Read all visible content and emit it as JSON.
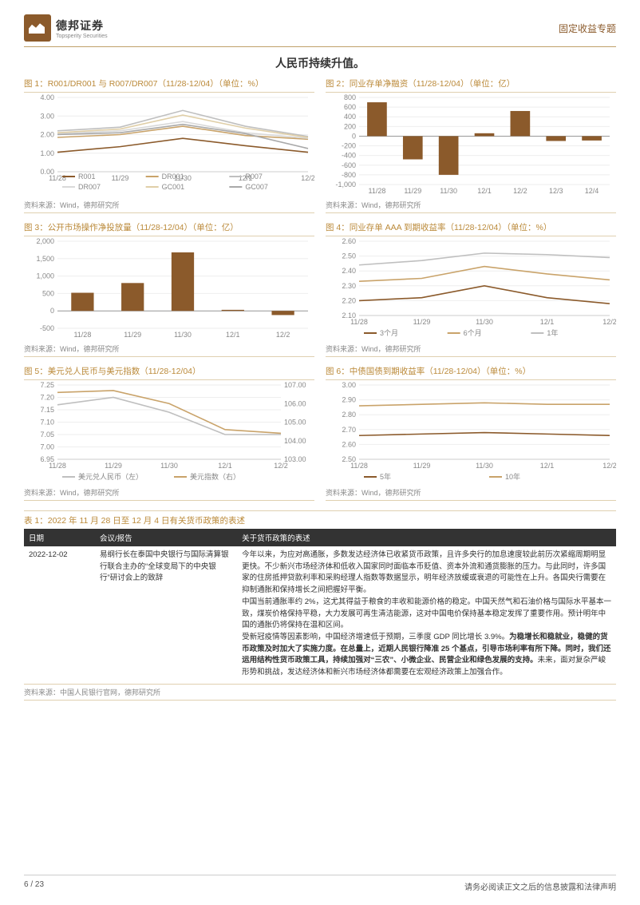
{
  "brand": {
    "company_name": "德邦证券",
    "company_en": "Topsperity Securities",
    "doc_type": "固定收益专题"
  },
  "subtitle": "人民币持续升值。",
  "colors": {
    "accent": "#bb8a3a",
    "brown_dark": "#8b5a2b",
    "brown_light": "#c9a36a",
    "grey": "#bfbfbf",
    "grey_light": "#d9d9d9",
    "bg": "#ffffff",
    "axis": "#666666"
  },
  "charts": {
    "c1": {
      "title": "图 1：R001/DR001 与 R007/DR007（11/28-12/04）（单位：%）",
      "type": "line",
      "x": [
        "11/28",
        "11/29",
        "11/30",
        "12/1",
        "12/2"
      ],
      "ylim": [
        0,
        4
      ],
      "ytick_step": 1,
      "y_format": "fixed2",
      "series": [
        {
          "name": "R001",
          "color": "#8b5a2b",
          "values": [
            1.05,
            1.35,
            1.8,
            1.4,
            1.05
          ]
        },
        {
          "name": "DR001",
          "color": "#c9a36a",
          "values": [
            1.85,
            2.0,
            2.45,
            1.95,
            1.75
          ]
        },
        {
          "name": "R007",
          "color": "#bfbfbf",
          "values": [
            2.2,
            2.4,
            3.3,
            2.45,
            1.9
          ]
        },
        {
          "name": "DR007",
          "color": "#d9d9d9",
          "values": [
            2.05,
            2.2,
            2.7,
            2.1,
            1.8
          ]
        },
        {
          "name": "GC001",
          "color": "#e0cfa8",
          "values": [
            2.1,
            2.3,
            3.05,
            2.35,
            1.85
          ]
        },
        {
          "name": "GC007",
          "color": "#a9a9a9",
          "values": [
            2.0,
            2.1,
            2.55,
            2.05,
            1.25
          ]
        }
      ],
      "legend_cols": 3,
      "source": "资料来源：Wind，德邦研究所"
    },
    "c2": {
      "title": "图 2：同业存单净融资（11/28-12/04）（单位：亿）",
      "type": "bar",
      "x": [
        "11/28",
        "11/29",
        "11/30",
        "12/1",
        "12/2",
        "12/3",
        "12/4"
      ],
      "ylim": [
        -1000,
        800
      ],
      "ytick_step": 200,
      "bar_color": "#8b5a2b",
      "bar_width": 0.55,
      "values": [
        700,
        -480,
        -800,
        60,
        520,
        -100,
        -90
      ],
      "source": "资料来源：Wind，德邦研究所"
    },
    "c3": {
      "title": "图 3：公开市场操作净投放量（11/28-12/04）（单位：亿）",
      "type": "bar",
      "x": [
        "11/28",
        "11/29",
        "11/30",
        "12/1",
        "12/2"
      ],
      "ylim": [
        -500,
        2000
      ],
      "ytick_step": 500,
      "bar_color": "#8b5a2b",
      "bar_width": 0.45,
      "values": [
        520,
        800,
        1680,
        30,
        -120
      ],
      "source": "资料来源：Wind，德邦研究所"
    },
    "c4": {
      "title": "图 4：同业存单 AAA 到期收益率（11/28-12/04）（单位：%）",
      "type": "line",
      "x": [
        "11/28",
        "11/29",
        "11/30",
        "12/1",
        "12/2"
      ],
      "ylim": [
        2.1,
        2.6
      ],
      "ytick_step": 0.1,
      "y_format": "fixed2",
      "series": [
        {
          "name": "3个月",
          "color": "#8b5a2b",
          "values": [
            2.2,
            2.22,
            2.3,
            2.22,
            2.18
          ]
        },
        {
          "name": "6个月",
          "color": "#c9a36a",
          "values": [
            2.33,
            2.35,
            2.43,
            2.38,
            2.34
          ]
        },
        {
          "name": "1年",
          "color": "#bfbfbf",
          "values": [
            2.44,
            2.47,
            2.52,
            2.51,
            2.49
          ]
        }
      ],
      "legend_cols": 3,
      "source": "资料来源：Wind，德邦研究所"
    },
    "c5": {
      "title": "图 5：美元兑人民币与美元指数（11/28-12/04）",
      "type": "line_dual",
      "x": [
        "11/28",
        "11/29",
        "11/30",
        "12/1",
        "12/2"
      ],
      "ylim_left": [
        6.95,
        7.25
      ],
      "ytick_step_left": 0.05,
      "y_format_left": "fixed2",
      "ylim_right": [
        103.0,
        107.0
      ],
      "ytick_step_right": 1.0,
      "y_format_right": "fixed2",
      "series": [
        {
          "name": "美元兑人民币（左）",
          "axis": "left",
          "color": "#bfbfbf",
          "values": [
            7.17,
            7.2,
            7.14,
            7.05,
            7.05
          ]
        },
        {
          "name": "美元指数（右）",
          "axis": "right",
          "color": "#c9a36a",
          "values": [
            106.6,
            106.7,
            106.0,
            104.6,
            104.4
          ]
        }
      ],
      "legend_cols": 2,
      "source": "资料来源：Wind，德邦研究所"
    },
    "c6": {
      "title": "图 6：中债国债到期收益率（11/28-12/04）（单位：%）",
      "type": "line",
      "x": [
        "11/28",
        "11/29",
        "11/30",
        "12/1",
        "12/2"
      ],
      "ylim": [
        2.5,
        3.0
      ],
      "ytick_step": 0.1,
      "y_format": "fixed2",
      "series": [
        {
          "name": "5年",
          "color": "#8b5a2b",
          "values": [
            2.66,
            2.67,
            2.68,
            2.67,
            2.66
          ]
        },
        {
          "name": "10年",
          "color": "#c9a36a",
          "values": [
            2.86,
            2.87,
            2.88,
            2.87,
            2.87
          ]
        }
      ],
      "legend_cols": 2,
      "source": "资料来源：Wind，德邦研究所"
    }
  },
  "table": {
    "title": "表 1：2022 年 11 月 28 日至 12 月 4 日有关货币政策的表述",
    "columns": [
      "日期",
      "会议/报告",
      "关于货币政策的表述"
    ],
    "col_widths": [
      "12%",
      "24%",
      "64%"
    ],
    "rows": [
      {
        "date": "2022-12-02",
        "meeting": "易纲行长在泰国中央银行与国际清算银行联合主办的“全球变局下的中央银行”研讨会上的致辞",
        "body_plain": "今年以来，为应对高通胀，多数发达经济体已收紧货币政策，且许多央行的加息速度较此前历次紧缩周期明显更快。不少新兴市场经济体和低收入国家同时面临本币贬值、资本外流和通货膨胀的压力。与此同时，许多国家的住房抵押贷款利率和采购经理人指数等数据显示，明年经济放缓或衰退的可能性在上升。各国央行需要在抑制通胀和保持增长之间把握好平衡。\n中国当前通胀率约 2%，这尤其得益于粮食的丰收和能源价格的稳定。中国天然气和石油价格与国际水平基本一致，煤炭价格保持平稳，大力发展可再生清洁能源，这对中国电价保持基本稳定发挥了重要作用。预计明年中国的通胀仍将保持在温和区间。\n受新冠疫情等因素影响，中国经济增速低于预期，三季度 GDP 同比增长 3.9%。为稳增长和稳就业，稳健的货币政策及时加大了实施力度。在总量上，近期人民银行降准 25 个基点，引导市场利率有所下降。同时，我们还运用结构性货币政策工具，持续加强对“三农”、小微企业、民营企业和绿色发展的支持。未来，面对复杂严峻形势和挑战，发达经济体和新兴市场经济体都需要在宏观经济政策上加强合作。",
        "bold_segments": [
          "为稳增长和稳就业，稳健的货币政策及时加大了实施力度。",
          "在总量上，近期人民银行降准 25 个基点",
          "，引导市场利率有所下降。同时，我们还运用结构性货币政策工具，持续加强对“三农”、小微企业、民营企业和绿色发展的支持。"
        ]
      }
    ],
    "source": "资料来源：中国人民银行官网，德邦研究所"
  },
  "footer": {
    "page": "6 / 23",
    "disclaimer": "请务必阅读正文之后的信息披露和法律声明"
  }
}
